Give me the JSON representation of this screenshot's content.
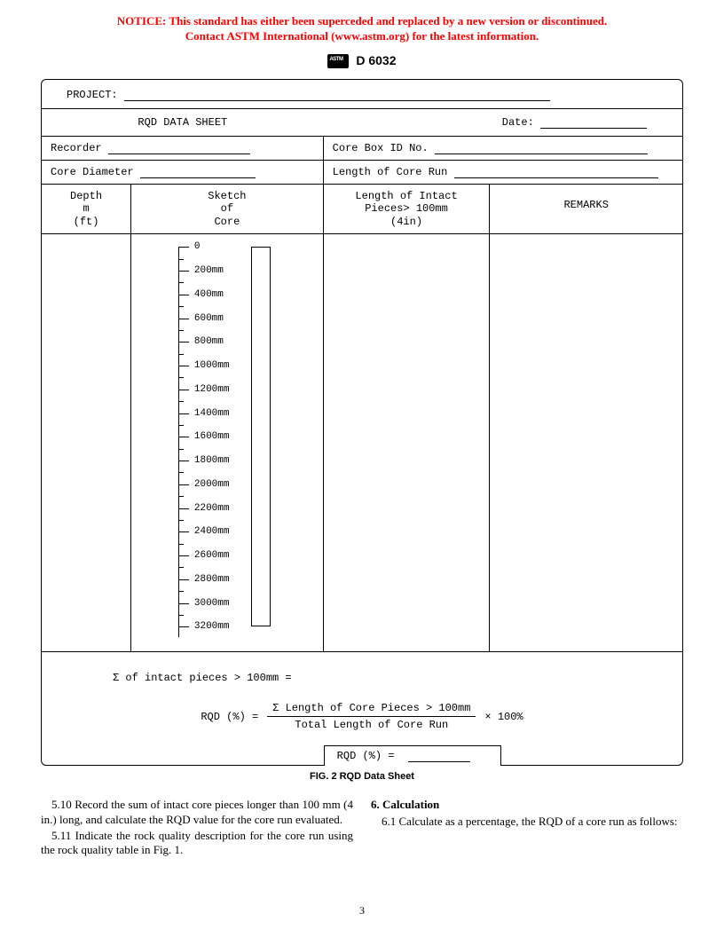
{
  "notice": {
    "line1": "NOTICE: This standard has either been superceded and replaced by a new version or discontinued.",
    "line2": "Contact ASTM International (www.astm.org) for the latest information."
  },
  "doc_number": "D 6032",
  "sheet": {
    "project_label": "PROJECT:",
    "title": "RQD DATA SHEET",
    "date_label": "Date:",
    "recorder_label": "Recorder",
    "core_diameter_label": "Core Diameter",
    "core_box_label": "Core Box ID No.",
    "length_run_label": "Length of Core Run",
    "columns": {
      "depth": "Depth\nm\n(ft)",
      "sketch": "Sketch\nof\nCore",
      "length": "Length of Intact\nPieces> 100mm\n(4in)",
      "remarks": "REMARKS"
    },
    "ruler": {
      "start": 0,
      "step": 200,
      "count": 16,
      "unit": "mm",
      "labels": [
        "0",
        "200mm",
        "400mm",
        "600mm",
        "800mm",
        "1000mm",
        "1200mm",
        "1400mm",
        "1600mm",
        "1800mm",
        "2000mm",
        "2200mm",
        "2400mm",
        "2600mm",
        "2800mm",
        "3000mm",
        "3200mm"
      ]
    },
    "sigma_text": "Σ of intact pieces > 100mm =",
    "formula": {
      "lhs": "RQD (%)  =",
      "numerator": "Σ Length of Core Pieces > 100mm",
      "denominator": "Total Length of Core Run",
      "rhs": "× 100%"
    },
    "result_label": "RQD (%) ="
  },
  "figure_caption": "FIG. 2 RQD Data Sheet",
  "body": {
    "p510": "5.10 Record the sum of intact core pieces longer than 100 mm (4 in.) long, and calculate the RQD value for the core run evaluated.",
    "p511": "5.11 Indicate the rock quality description for the core run using the rock quality table in Fig. 1.",
    "section6": "6. Calculation",
    "p61": "6.1 Calculate as a percentage, the RQD of a core run as follows:"
  },
  "page_number": "3",
  "colors": {
    "notice": "#ff0000",
    "text": "#000000",
    "background": "#ffffff"
  }
}
